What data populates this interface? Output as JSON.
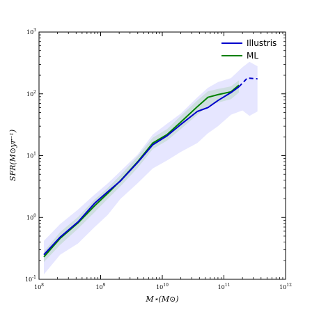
{
  "chart_data": {
    "type": "line",
    "xlabel": "M⋆(M⊙)",
    "ylabel": "SFR(M⊙yr⁻¹)",
    "xscale": "log",
    "yscale": "log",
    "xlim": [
      100000000,
      1000000000000
    ],
    "ylim": [
      0.1,
      1000
    ],
    "legend_position": "top-right",
    "grid": false,
    "x_ticks": [
      {
        "value": 100000000,
        "base": "10",
        "exp": "8"
      },
      {
        "value": 1000000000,
        "base": "10",
        "exp": "9"
      },
      {
        "value": 10000000000,
        "base": "10",
        "exp": "10"
      },
      {
        "value": 100000000000,
        "base": "10",
        "exp": "11"
      },
      {
        "value": 1000000000000,
        "base": "10",
        "exp": "12"
      }
    ],
    "y_ticks": [
      {
        "value": 0.1,
        "base": "10",
        "exp": "-1"
      },
      {
        "value": 1,
        "base": "10",
        "exp": "0"
      },
      {
        "value": 10,
        "base": "10",
        "exp": "1"
      },
      {
        "value": 100,
        "base": "10",
        "exp": "2"
      },
      {
        "value": 1000,
        "base": "10",
        "exp": "3"
      }
    ],
    "series": [
      {
        "name": "Illustris",
        "color": "#0000cc",
        "band_color": "#6666ff",
        "x": [
          120000000,
          220000000,
          430000000,
          800000000,
          1300000000,
          2100000000,
          4000000000,
          7000000000,
          12000000000,
          20000000000,
          37000000000,
          55000000000,
          80000000000,
          130000000000,
          175000000000
        ],
        "y": [
          0.25,
          0.48,
          0.85,
          1.7,
          2.6,
          3.9,
          7.8,
          15,
          21,
          32,
          52,
          60,
          78,
          105,
          130
        ],
        "dashed_x": [
          175000000000,
          240000000000,
          350000000000
        ],
        "dashed_y": [
          130,
          180,
          175
        ],
        "band_x": [
          120000000,
          220000000,
          430000000,
          800000000,
          1300000000,
          2100000000,
          4000000000,
          7000000000,
          12000000000,
          20000000000,
          37000000000,
          55000000000,
          80000000000,
          130000000000,
          200000000000,
          260000000000,
          350000000000
        ],
        "band_low": [
          0.12,
          0.25,
          0.38,
          0.7,
          1.1,
          2.0,
          3.6,
          6.2,
          8.4,
          11.5,
          16,
          23,
          30,
          46,
          54,
          44,
          52
        ],
        "band_high": [
          0.42,
          0.78,
          1.35,
          2.35,
          3.55,
          5.6,
          10.5,
          22,
          33,
          48,
          88,
          125,
          155,
          180,
          270,
          330,
          280
        ]
      },
      {
        "name": "ML",
        "color": "#008000",
        "band_color": "#99cc99",
        "x": [
          120000000,
          220000000,
          430000000,
          800000000,
          1300000000,
          2100000000,
          4000000000,
          7000000000,
          12000000000,
          20000000000,
          37000000000,
          55000000000,
          80000000000,
          130000000000,
          175000000000
        ],
        "y": [
          0.23,
          0.46,
          0.82,
          1.55,
          2.45,
          3.95,
          8.0,
          16,
          22,
          35,
          62,
          88,
          97,
          108,
          138
        ],
        "band_x": [
          120000000,
          220000000,
          430000000,
          800000000,
          1300000000,
          2100000000,
          4000000000,
          7000000000,
          12000000000,
          20000000000,
          37000000000,
          55000000000,
          80000000000,
          130000000000,
          175000000000
        ],
        "band_low": [
          0.19,
          0.36,
          0.66,
          1.22,
          2.0,
          3.2,
          6.4,
          12.8,
          17.6,
          27,
          46,
          64,
          72,
          82,
          105
        ],
        "band_high": [
          0.28,
          0.58,
          1.02,
          1.96,
          3.0,
          4.85,
          9.8,
          19.5,
          27,
          44,
          78,
          110,
          120,
          132,
          165
        ]
      }
    ]
  }
}
